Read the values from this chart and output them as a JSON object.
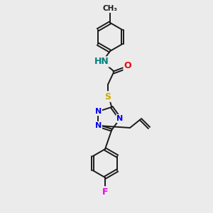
{
  "background_color": "#ebebeb",
  "atom_colors": {
    "C": "#1a1a1a",
    "N": "#0000ee",
    "O": "#ee0000",
    "S": "#ccaa00",
    "F": "#ee00ee",
    "H": "#008080"
  },
  "figsize": [
    3.0,
    3.0
  ],
  "dpi": 100,
  "bond_lw": 1.4,
  "ring_r": 20,
  "tri_r": 17
}
